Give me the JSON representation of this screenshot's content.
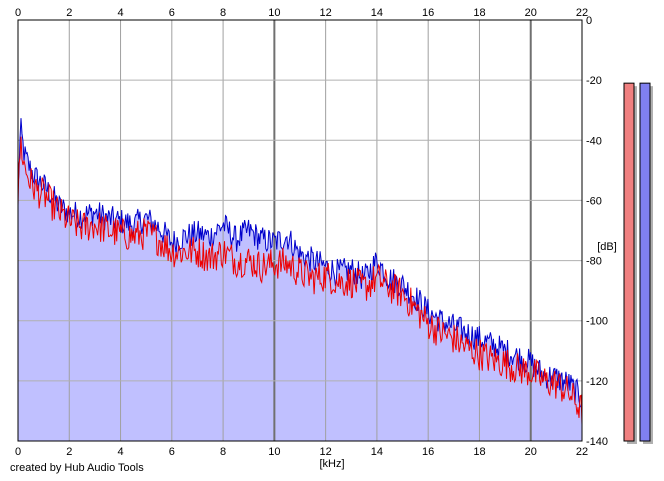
{
  "chart_data": {
    "type": "area",
    "xlabel": "[kHz]",
    "ylabel": "[dB]",
    "xlim": [
      0,
      22
    ],
    "ylim": [
      -140,
      0
    ],
    "x_ticks": [
      "0",
      "2",
      "4",
      "6",
      "8",
      "10",
      "12",
      "14",
      "16",
      "18",
      "20",
      "22"
    ],
    "y_ticks": [
      "0",
      "-20",
      "-40",
      "-60",
      "-80",
      "-100",
      "-120",
      "-140"
    ],
    "grid": true,
    "series": [
      {
        "color": "#0000cc",
        "x": [
          0,
          0.1,
          0.25,
          0.5,
          0.75,
          1.0,
          1.3,
          1.6,
          2.0,
          2.5,
          3.0,
          3.5,
          4.0,
          4.5,
          5.0,
          5.5,
          6.0,
          6.5,
          7.0,
          7.5,
          8.0,
          8.5,
          9.0,
          9.5,
          10.0,
          10.5,
          11.0,
          11.5,
          12.0,
          12.5,
          13.0,
          13.5,
          14.0,
          14.5,
          15.0,
          15.5,
          16.0,
          16.5,
          17.0,
          17.5,
          18.0,
          18.5,
          19.0,
          19.5,
          20.0,
          20.5,
          21.0,
          21.5,
          22.0
        ],
        "values": [
          -57,
          -36,
          -45,
          -50,
          -53,
          -55,
          -58,
          -62,
          -64,
          -65,
          -64,
          -66,
          -67,
          -68,
          -66,
          -69,
          -74,
          -72,
          -71,
          -72,
          -68,
          -73,
          -70,
          -73,
          -74,
          -72,
          -78,
          -80,
          -82,
          -84,
          -83,
          -86,
          -80,
          -86,
          -88,
          -92,
          -97,
          -100,
          -102,
          -104,
          -106,
          -108,
          -110,
          -112,
          -114,
          -118,
          -119,
          -121,
          -126
        ]
      },
      {
        "color": "#ee0000",
        "x": [
          0,
          0.1,
          0.25,
          0.5,
          0.75,
          1.0,
          1.3,
          1.6,
          2.0,
          2.5,
          3.0,
          3.5,
          4.0,
          4.5,
          5.0,
          5.5,
          6.0,
          6.5,
          7.0,
          7.5,
          8.0,
          8.5,
          9.0,
          9.5,
          10.0,
          10.5,
          11.0,
          11.5,
          12.0,
          12.5,
          13.0,
          13.5,
          14.0,
          14.5,
          15.0,
          15.5,
          16.0,
          16.5,
          17.0,
          17.5,
          18.0,
          18.5,
          19.0,
          19.5,
          20.0,
          20.5,
          21.0,
          21.5,
          22.0
        ],
        "values": [
          -60,
          -40,
          -49,
          -54,
          -57,
          -58,
          -61,
          -64,
          -67,
          -69,
          -68,
          -70,
          -71,
          -72,
          -71,
          -73,
          -77,
          -77,
          -77,
          -79,
          -77,
          -80,
          -80,
          -82,
          -81,
          -81,
          -84,
          -86,
          -85,
          -87,
          -87,
          -89,
          -86,
          -89,
          -91,
          -96,
          -101,
          -104,
          -106,
          -109,
          -111,
          -113,
          -114,
          -116,
          -117,
          -120,
          -121,
          -124,
          -130
        ]
      }
    ],
    "level_meters": [
      {
        "color": "#f08080",
        "value": -21
      },
      {
        "color": "#8080f0",
        "value": -21
      }
    ],
    "fill_color": "#c0c0ff"
  },
  "credit_text": "created by Hub Audio Tools"
}
